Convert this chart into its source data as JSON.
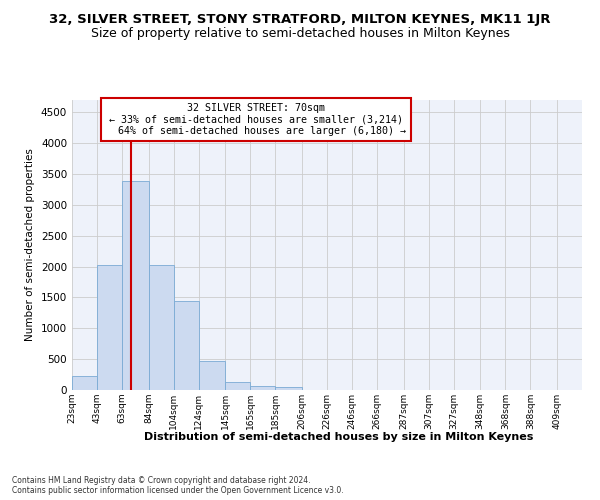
{
  "title": "32, SILVER STREET, STONY STRATFORD, MILTON KEYNES, MK11 1JR",
  "subtitle": "Size of property relative to semi-detached houses in Milton Keynes",
  "xlabel": "Distribution of semi-detached houses by size in Milton Keynes",
  "ylabel": "Number of semi-detached properties",
  "footnote": "Contains HM Land Registry data © Crown copyright and database right 2024.\nContains public sector information licensed under the Open Government Licence v3.0.",
  "bar_edges": [
    23,
    43,
    63,
    84,
    104,
    124,
    145,
    165,
    185,
    206,
    226,
    246,
    266,
    287,
    307,
    327,
    348,
    368,
    388,
    409,
    429
  ],
  "bar_heights": [
    220,
    2020,
    3380,
    2020,
    1450,
    470,
    130,
    60,
    55,
    0,
    0,
    0,
    0,
    0,
    0,
    0,
    0,
    0,
    0,
    0
  ],
  "bar_color": "#ccdaf0",
  "bar_edgecolor": "#7aaad4",
  "subject_sqm": 70,
  "pct_smaller": 33,
  "pct_larger": 64,
  "n_smaller": 3214,
  "n_larger": 6180,
  "vline_color": "#cc0000",
  "annotation_box_edgecolor": "#cc0000",
  "ylim": [
    0,
    4700
  ],
  "yticks": [
    0,
    500,
    1000,
    1500,
    2000,
    2500,
    3000,
    3500,
    4000,
    4500
  ],
  "grid_color": "#cccccc",
  "bg_color": "#eef2fa",
  "title_fontsize": 9.5,
  "subtitle_fontsize": 9,
  "footnote_fontsize": 5.5
}
